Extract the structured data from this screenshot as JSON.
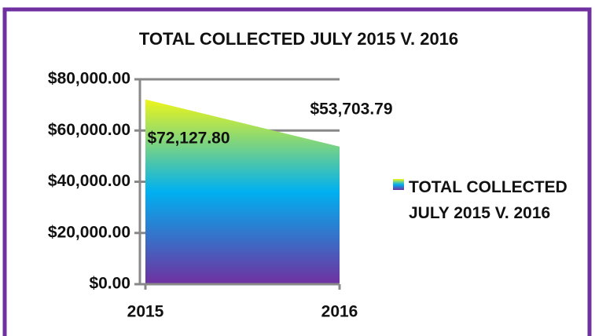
{
  "chart_data": {
    "type": "area",
    "title": "TOTAL COLLECTED JULY 2015 V. 2016",
    "categories": [
      "2015",
      "2016"
    ],
    "series": [
      {
        "name": "TOTAL COLLECTED JULY 2015 V. 2016",
        "gradient": [
          "#eef51a",
          "#00b0f0",
          "#7030a0"
        ],
        "values": [
          72127.8,
          53703.79
        ],
        "value_labels": [
          "$72,127.80",
          "$53,703.79"
        ]
      }
    ],
    "ylim": [
      0,
      80000
    ],
    "yticks": [
      {
        "value": 0,
        "label": "$0.00"
      },
      {
        "value": 20000,
        "label": "$20,000.00"
      },
      {
        "value": 40000,
        "label": "$40,000.00"
      },
      {
        "value": 60000,
        "label": "$60,000.00"
      },
      {
        "value": 80000,
        "label": "$80,000.00"
      }
    ],
    "grid": true,
    "legend": "right"
  }
}
